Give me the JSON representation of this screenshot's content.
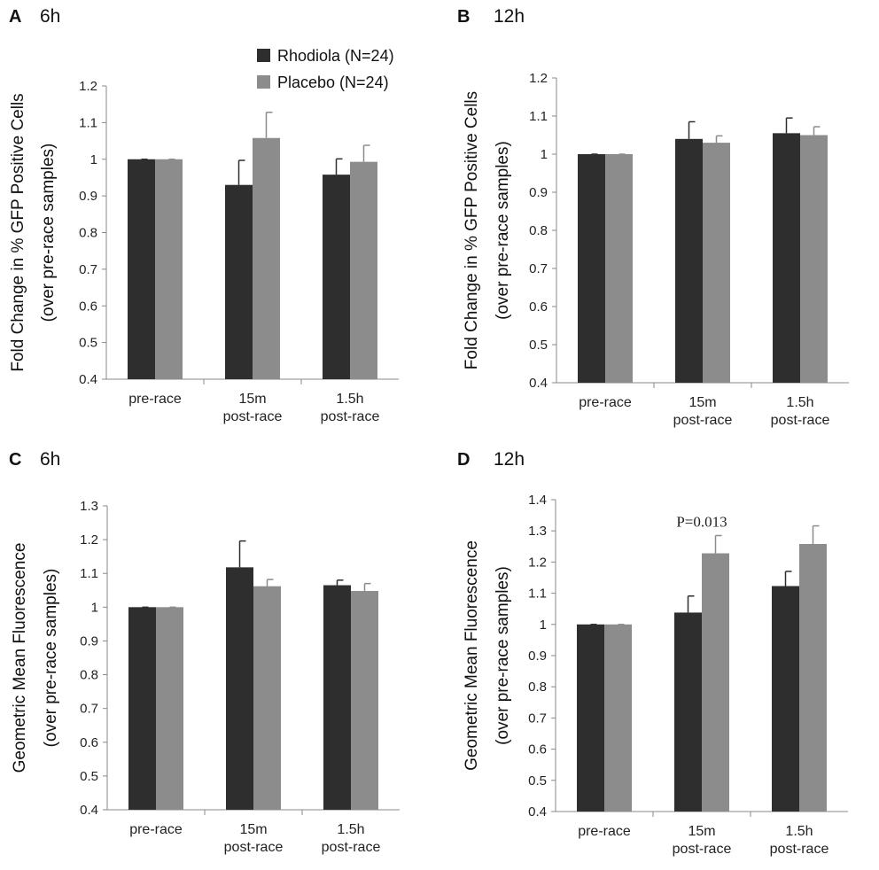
{
  "legend": {
    "entries": [
      {
        "name": "Rhodiola (N=24)",
        "color": "#2e2e2e"
      },
      {
        "name": "Placebo (N=24)",
        "color": "#8c8c8c"
      }
    ]
  },
  "chart_data": [
    {
      "type": "bar",
      "letter": "A",
      "title": "6h",
      "ylabel": [
        "Fold Change in % GFP Positive Cells",
        "(over pre-race samples)"
      ],
      "ylim": [
        0.4,
        1.2
      ],
      "yticks": [
        0.4,
        0.5,
        0.6,
        0.7,
        0.8,
        0.9,
        1,
        1.1,
        1.2
      ],
      "categories": [
        [
          "pre-race"
        ],
        [
          "15m",
          "post-race"
        ],
        [
          "1.5h",
          "post-race"
        ]
      ],
      "series": [
        {
          "name": "Rhodiola (N=24)",
          "values": [
            1.0,
            0.93,
            0.958
          ],
          "errors": [
            0.0,
            0.067,
            0.043
          ]
        },
        {
          "name": "Placebo (N=24)",
          "values": [
            1.0,
            1.058,
            0.993
          ],
          "errors": [
            0.0,
            0.07,
            0.045
          ]
        }
      ],
      "annotations": []
    },
    {
      "type": "bar",
      "letter": "B",
      "title": "12h",
      "ylabel": [
        "Fold Change in % GFP Positive Cells",
        "(over pre-race samples)"
      ],
      "ylim": [
        0.4,
        1.2
      ],
      "yticks": [
        0.4,
        0.5,
        0.6,
        0.7,
        0.8,
        0.9,
        1,
        1.1,
        1.2
      ],
      "categories": [
        [
          "pre-race"
        ],
        [
          "15m",
          "post-race"
        ],
        [
          "1.5h",
          "post-race"
        ]
      ],
      "series": [
        {
          "name": "Rhodiola (N=24)",
          "values": [
            1.0,
            1.04,
            1.055
          ],
          "errors": [
            0.0,
            0.045,
            0.04
          ]
        },
        {
          "name": "Placebo (N=24)",
          "values": [
            1.0,
            1.03,
            1.05
          ],
          "errors": [
            0.0,
            0.018,
            0.022
          ]
        }
      ],
      "annotations": []
    },
    {
      "type": "bar",
      "letter": "C",
      "title": "6h",
      "ylabel": [
        "Geometric Mean Fluorescence",
        "(over pre-race samples)"
      ],
      "ylim": [
        0.4,
        1.3
      ],
      "yticks": [
        0.4,
        0.5,
        0.6,
        0.7,
        0.8,
        0.9,
        1,
        1.1,
        1.2,
        1.3
      ],
      "categories": [
        [
          "pre-race"
        ],
        [
          "15m",
          "post-race"
        ],
        [
          "1.5h",
          "post-race"
        ]
      ],
      "series": [
        {
          "name": "Rhodiola (N=24)",
          "values": [
            1.0,
            1.118,
            1.065
          ],
          "errors": [
            0.0,
            0.078,
            0.015
          ]
        },
        {
          "name": "Placebo (N=24)",
          "values": [
            1.0,
            1.062,
            1.048
          ],
          "errors": [
            0.0,
            0.02,
            0.022
          ]
        }
      ],
      "annotations": []
    },
    {
      "type": "bar",
      "letter": "D",
      "title": "12h",
      "ylabel": [
        "Geometric Mean Fluorescence",
        "(over pre-race samples)"
      ],
      "ylim": [
        0.4,
        1.4
      ],
      "yticks": [
        0.4,
        0.5,
        0.6,
        0.7,
        0.8,
        0.9,
        1,
        1.1,
        1.2,
        1.3,
        1.4
      ],
      "categories": [
        [
          "pre-race"
        ],
        [
          "15m",
          "post-race"
        ],
        [
          "1.5h",
          "post-race"
        ]
      ],
      "series": [
        {
          "name": "Rhodiola (N=24)",
          "values": [
            1.0,
            1.038,
            1.123
          ],
          "errors": [
            0.0,
            0.053,
            0.047
          ]
        },
        {
          "name": "Placebo (N=24)",
          "values": [
            1.0,
            1.228,
            1.258
          ],
          "errors": [
            0.0,
            0.057,
            0.058
          ]
        }
      ],
      "annotations": [
        {
          "text": "P=0.013",
          "category": 1,
          "y": 1.33
        }
      ]
    }
  ]
}
